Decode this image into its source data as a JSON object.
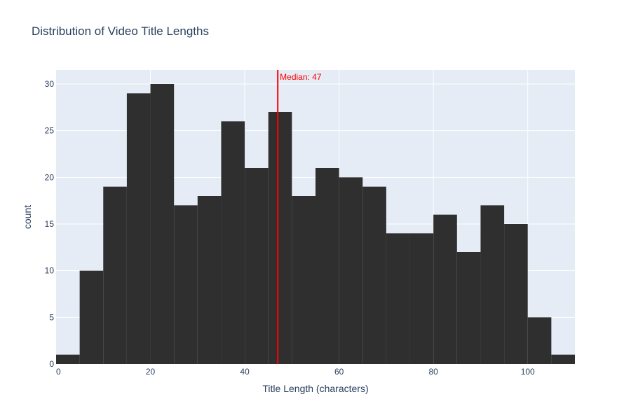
{
  "chart_data": {
    "type": "bar",
    "title": "Distribution of Video Title Lengths",
    "xlabel": "Title Length (characters)",
    "ylabel": "count",
    "bin_width": 5,
    "bins": [
      {
        "x0": 0,
        "x1": 5,
        "count": 1
      },
      {
        "x0": 5,
        "x1": 10,
        "count": 10
      },
      {
        "x0": 10,
        "x1": 15,
        "count": 19
      },
      {
        "x0": 15,
        "x1": 20,
        "count": 29
      },
      {
        "x0": 20,
        "x1": 25,
        "count": 30
      },
      {
        "x0": 25,
        "x1": 30,
        "count": 17
      },
      {
        "x0": 30,
        "x1": 35,
        "count": 18
      },
      {
        "x0": 35,
        "x1": 40,
        "count": 26
      },
      {
        "x0": 40,
        "x1": 45,
        "count": 21
      },
      {
        "x0": 45,
        "x1": 50,
        "count": 27
      },
      {
        "x0": 50,
        "x1": 55,
        "count": 18
      },
      {
        "x0": 55,
        "x1": 60,
        "count": 21
      },
      {
        "x0": 60,
        "x1": 65,
        "count": 20
      },
      {
        "x0": 65,
        "x1": 70,
        "count": 19
      },
      {
        "x0": 70,
        "x1": 75,
        "count": 14
      },
      {
        "x0": 75,
        "x1": 80,
        "count": 14
      },
      {
        "x0": 80,
        "x1": 85,
        "count": 16
      },
      {
        "x0": 85,
        "x1": 90,
        "count": 12
      },
      {
        "x0": 90,
        "x1": 95,
        "count": 17
      },
      {
        "x0": 95,
        "x1": 100,
        "count": 15
      },
      {
        "x0": 100,
        "x1": 105,
        "count": 5
      },
      {
        "x0": 105,
        "x1": 110,
        "count": 1
      }
    ],
    "xlim": [
      0,
      110
    ],
    "ylim": [
      0,
      31.5
    ],
    "x_ticks": [
      0,
      20,
      40,
      60,
      80,
      100
    ],
    "y_ticks": [
      0,
      5,
      10,
      15,
      20,
      25,
      30
    ],
    "grid": true,
    "bar_color": "#2f2f2f",
    "plot_background": "#e5ecf6",
    "median_line": {
      "x": 47,
      "label": "Median: 47",
      "color": "#ff0000"
    }
  }
}
